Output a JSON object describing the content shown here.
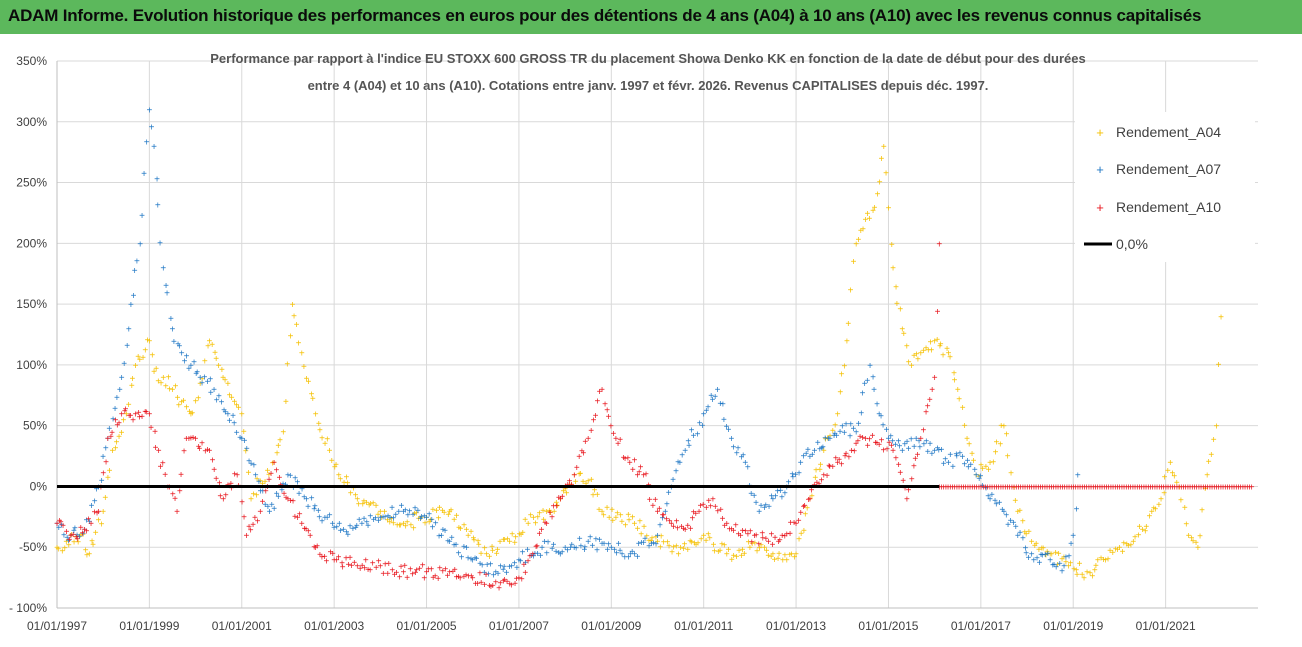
{
  "banner": {
    "title": "ADAM Informe. Evolution historique des performances en euros pour des détentions de 4 ans (A04) à 10 ans (A10) avec les revenus connus capitalisés"
  },
  "colors": {
    "banner_bg": "#5cb85c",
    "A04": "#f5c000",
    "A07": "#1f77c4",
    "A10": "#e8141c",
    "zero_line": "#000000",
    "grid": "#d9d9d9"
  },
  "chart_data": {
    "type": "scatter",
    "title_line1": "Performance par rapport à l'indice EU STOXX 600 GROSS TR  du placement Showa Denko KK en fonction de la date de début pour des durées",
    "title_line2": "entre 4 (A04) et 10 ans (A10). Cotations entre janv. 1997 et févr. 2026. Revenus CAPITALISES depuis déc. 1997.",
    "x_domain": [
      1997.0,
      2023.0
    ],
    "x_ticks": [
      {
        "value": 1997,
        "label": "01/01/1997"
      },
      {
        "value": 1999,
        "label": "01/01/1999"
      },
      {
        "value": 2001,
        "label": "01/01/2001"
      },
      {
        "value": 2003,
        "label": "01/01/2003"
      },
      {
        "value": 2005,
        "label": "01/01/2005"
      },
      {
        "value": 2007,
        "label": "01/01/2007"
      },
      {
        "value": 2009,
        "label": "01/01/2009"
      },
      {
        "value": 2011,
        "label": "01/01/2011"
      },
      {
        "value": 2013,
        "label": "01/01/2013"
      },
      {
        "value": 2015,
        "label": "01/01/2015"
      },
      {
        "value": 2017,
        "label": "01/01/2017"
      },
      {
        "value": 2019,
        "label": "01/01/2019"
      },
      {
        "value": 2021,
        "label": "01/01/2021"
      }
    ],
    "y_ticks": [
      {
        "value": 350,
        "label": "350%"
      },
      {
        "value": 300,
        "label": "300%"
      },
      {
        "value": 250,
        "label": "250%"
      },
      {
        "value": 200,
        "label": "200%"
      },
      {
        "value": 150,
        "label": "150%"
      },
      {
        "value": 100,
        "label": "100%"
      },
      {
        "value": 50,
        "label": "50%"
      },
      {
        "value": 0,
        "label": "0%"
      },
      {
        "value": -50,
        "label": "-50%"
      },
      {
        "value": -100,
        "label": "- 100%"
      }
    ],
    "ylim": [
      -100,
      350
    ],
    "zero_line": {
      "name": "0,0%",
      "value": 0
    },
    "series": [
      {
        "name": "Rendement_A04",
        "color": "#f5c000",
        "x": [
          1997.0,
          1997.2,
          1997.5,
          1997.7,
          1998.0,
          1998.2,
          1998.5,
          1998.7,
          1999.0,
          1999.1,
          1999.3,
          1999.5,
          1999.7,
          1999.9,
          2000.1,
          2000.3,
          2000.5,
          2000.7,
          2001.0,
          2001.2,
          2001.4,
          2001.7,
          2001.9,
          2002.1,
          2002.3,
          2002.6,
          2002.9,
          2003.1,
          2003.5,
          2004.0,
          2004.5,
          2005.0,
          2005.5,
          2005.9,
          2006.3,
          2006.8,
          2007.2,
          2007.6,
          2007.9,
          2008.2,
          2008.5,
          2008.8,
          2009.1,
          2009.5,
          2010.0,
          2010.5,
          2011.0,
          2011.5,
          2012.0,
          2012.5,
          2012.8,
          2013.0,
          2013.3,
          2013.6,
          2013.9,
          2014.1,
          2014.3,
          2014.5,
          2014.7,
          2014.9,
          2015.1,
          2015.3,
          2015.5,
          2015.7,
          2016.0,
          2016.3,
          2016.5,
          2016.7,
          2016.9,
          2017.2,
          2017.5,
          2017.8,
          2018.1,
          2018.5,
          2018.9,
          2019.3,
          2019.7,
          2020.0,
          2020.3,
          2020.5,
          2020.7,
          2020.9,
          2021.1,
          2021.3,
          2021.5,
          2021.7,
          2021.9,
          2022.1,
          2022.2
        ],
        "y": [
          -50,
          -45,
          -40,
          -55,
          -20,
          30,
          60,
          100,
          120,
          95,
          90,
          80,
          70,
          60,
          85,
          120,
          100,
          85,
          60,
          -10,
          5,
          20,
          45,
          150,
          110,
          60,
          30,
          10,
          -10,
          -20,
          -30,
          -25,
          -20,
          -40,
          -55,
          -45,
          -30,
          -20,
          -10,
          10,
          5,
          -20,
          -25,
          -30,
          -45,
          -50,
          -40,
          -55,
          -50,
          -55,
          -60,
          -55,
          -10,
          30,
          60,
          120,
          200,
          220,
          230,
          280,
          180,
          130,
          100,
          110,
          120,
          110,
          80,
          40,
          10,
          20,
          50,
          -20,
          -45,
          -55,
          -65,
          -70,
          -60,
          -50,
          -45,
          -35,
          -20,
          -10,
          20,
          0,
          -40,
          -50,
          10,
          50,
          140
        ]
      },
      {
        "name": "Rendement_A07",
        "color": "#1f77c4",
        "x": [
          1997.0,
          1997.3,
          1997.6,
          1997.9,
          1998.1,
          1998.4,
          1998.6,
          1998.8,
          1999.0,
          1999.1,
          1999.3,
          1999.5,
          1999.7,
          1999.9,
          2000.1,
          2000.4,
          2000.7,
          2001.0,
          2001.3,
          2001.6,
          2002.0,
          2002.4,
          2002.8,
          2003.2,
          2003.6,
          2004.0,
          2004.5,
          2005.0,
          2005.5,
          2006.0,
          2006.5,
          2007.0,
          2007.5,
          2008.0,
          2008.5,
          2009.0,
          2009.5,
          2010.0,
          2010.3,
          2010.6,
          2011.0,
          2011.3,
          2011.6,
          2011.9,
          2012.2,
          2012.5,
          2012.8,
          2013.1,
          2013.4,
          2013.7,
          2014.0,
          2014.3,
          2014.6,
          2014.8,
          2015.0,
          2015.3,
          2015.6,
          2016.0,
          2016.3,
          2016.6,
          2016.9,
          2017.2,
          2017.5,
          2017.8,
          2018.1,
          2018.5,
          2018.8,
          2019.0,
          2019.1
        ],
        "y": [
          -30,
          -40,
          -35,
          0,
          40,
          90,
          150,
          200,
          310,
          280,
          180,
          130,
          110,
          100,
          90,
          80,
          60,
          40,
          10,
          -20,
          10,
          -10,
          -25,
          -35,
          -30,
          -25,
          -20,
          -25,
          -45,
          -60,
          -70,
          -60,
          -50,
          -50,
          -45,
          -50,
          -55,
          -40,
          0,
          30,
          60,
          80,
          40,
          20,
          -20,
          -10,
          0,
          20,
          30,
          40,
          50,
          45,
          100,
          60,
          40,
          30,
          40,
          30,
          20,
          25,
          10,
          -10,
          -20,
          -40,
          -55,
          -60,
          -65,
          -40,
          10
        ]
      },
      {
        "name": "Rendement_A10",
        "color": "#e8141c",
        "x": [
          1997.0,
          1997.3,
          1997.6,
          1997.9,
          1998.1,
          1998.4,
          1998.7,
          1999.0,
          1999.2,
          1999.4,
          1999.6,
          1999.8,
          2000.0,
          2000.3,
          2000.6,
          2000.9,
          2001.1,
          2001.4,
          2001.7,
          2002.0,
          2002.3,
          2002.6,
          2003.0,
          2003.5,
          2004.0,
          2004.5,
          2005.0,
          2005.5,
          2006.0,
          2006.5,
          2007.0,
          2007.3,
          2007.6,
          2007.9,
          2008.2,
          2008.5,
          2008.8,
          2009.1,
          2009.4,
          2009.7,
          2010.0,
          2010.3,
          2010.6,
          2010.9,
          2011.2,
          2011.5,
          2011.8,
          2012.1,
          2012.4,
          2012.7,
          2013.0,
          2013.3,
          2013.6,
          2013.9,
          2014.2,
          2014.5,
          2014.8,
          2015.1,
          2015.4,
          2015.7,
          2016.0,
          2016.1
        ],
        "y": [
          -30,
          -40,
          -35,
          -20,
          40,
          60,
          60,
          60,
          30,
          0,
          -20,
          40,
          40,
          30,
          -10,
          10,
          -40,
          -20,
          20,
          -10,
          -30,
          -50,
          -60,
          -65,
          -65,
          -70,
          -70,
          -70,
          -75,
          -78,
          -75,
          -55,
          -30,
          -10,
          10,
          40,
          80,
          40,
          20,
          10,
          -20,
          -30,
          -35,
          -20,
          -10,
          -30,
          -40,
          -40,
          -45,
          -40,
          -30,
          -10,
          10,
          20,
          30,
          40,
          35,
          30,
          -10,
          40,
          90,
          200
        ]
      }
    ],
    "flat_segment": {
      "x_start": 2016.1,
      "x_end": 2022.9,
      "value": 0
    }
  }
}
